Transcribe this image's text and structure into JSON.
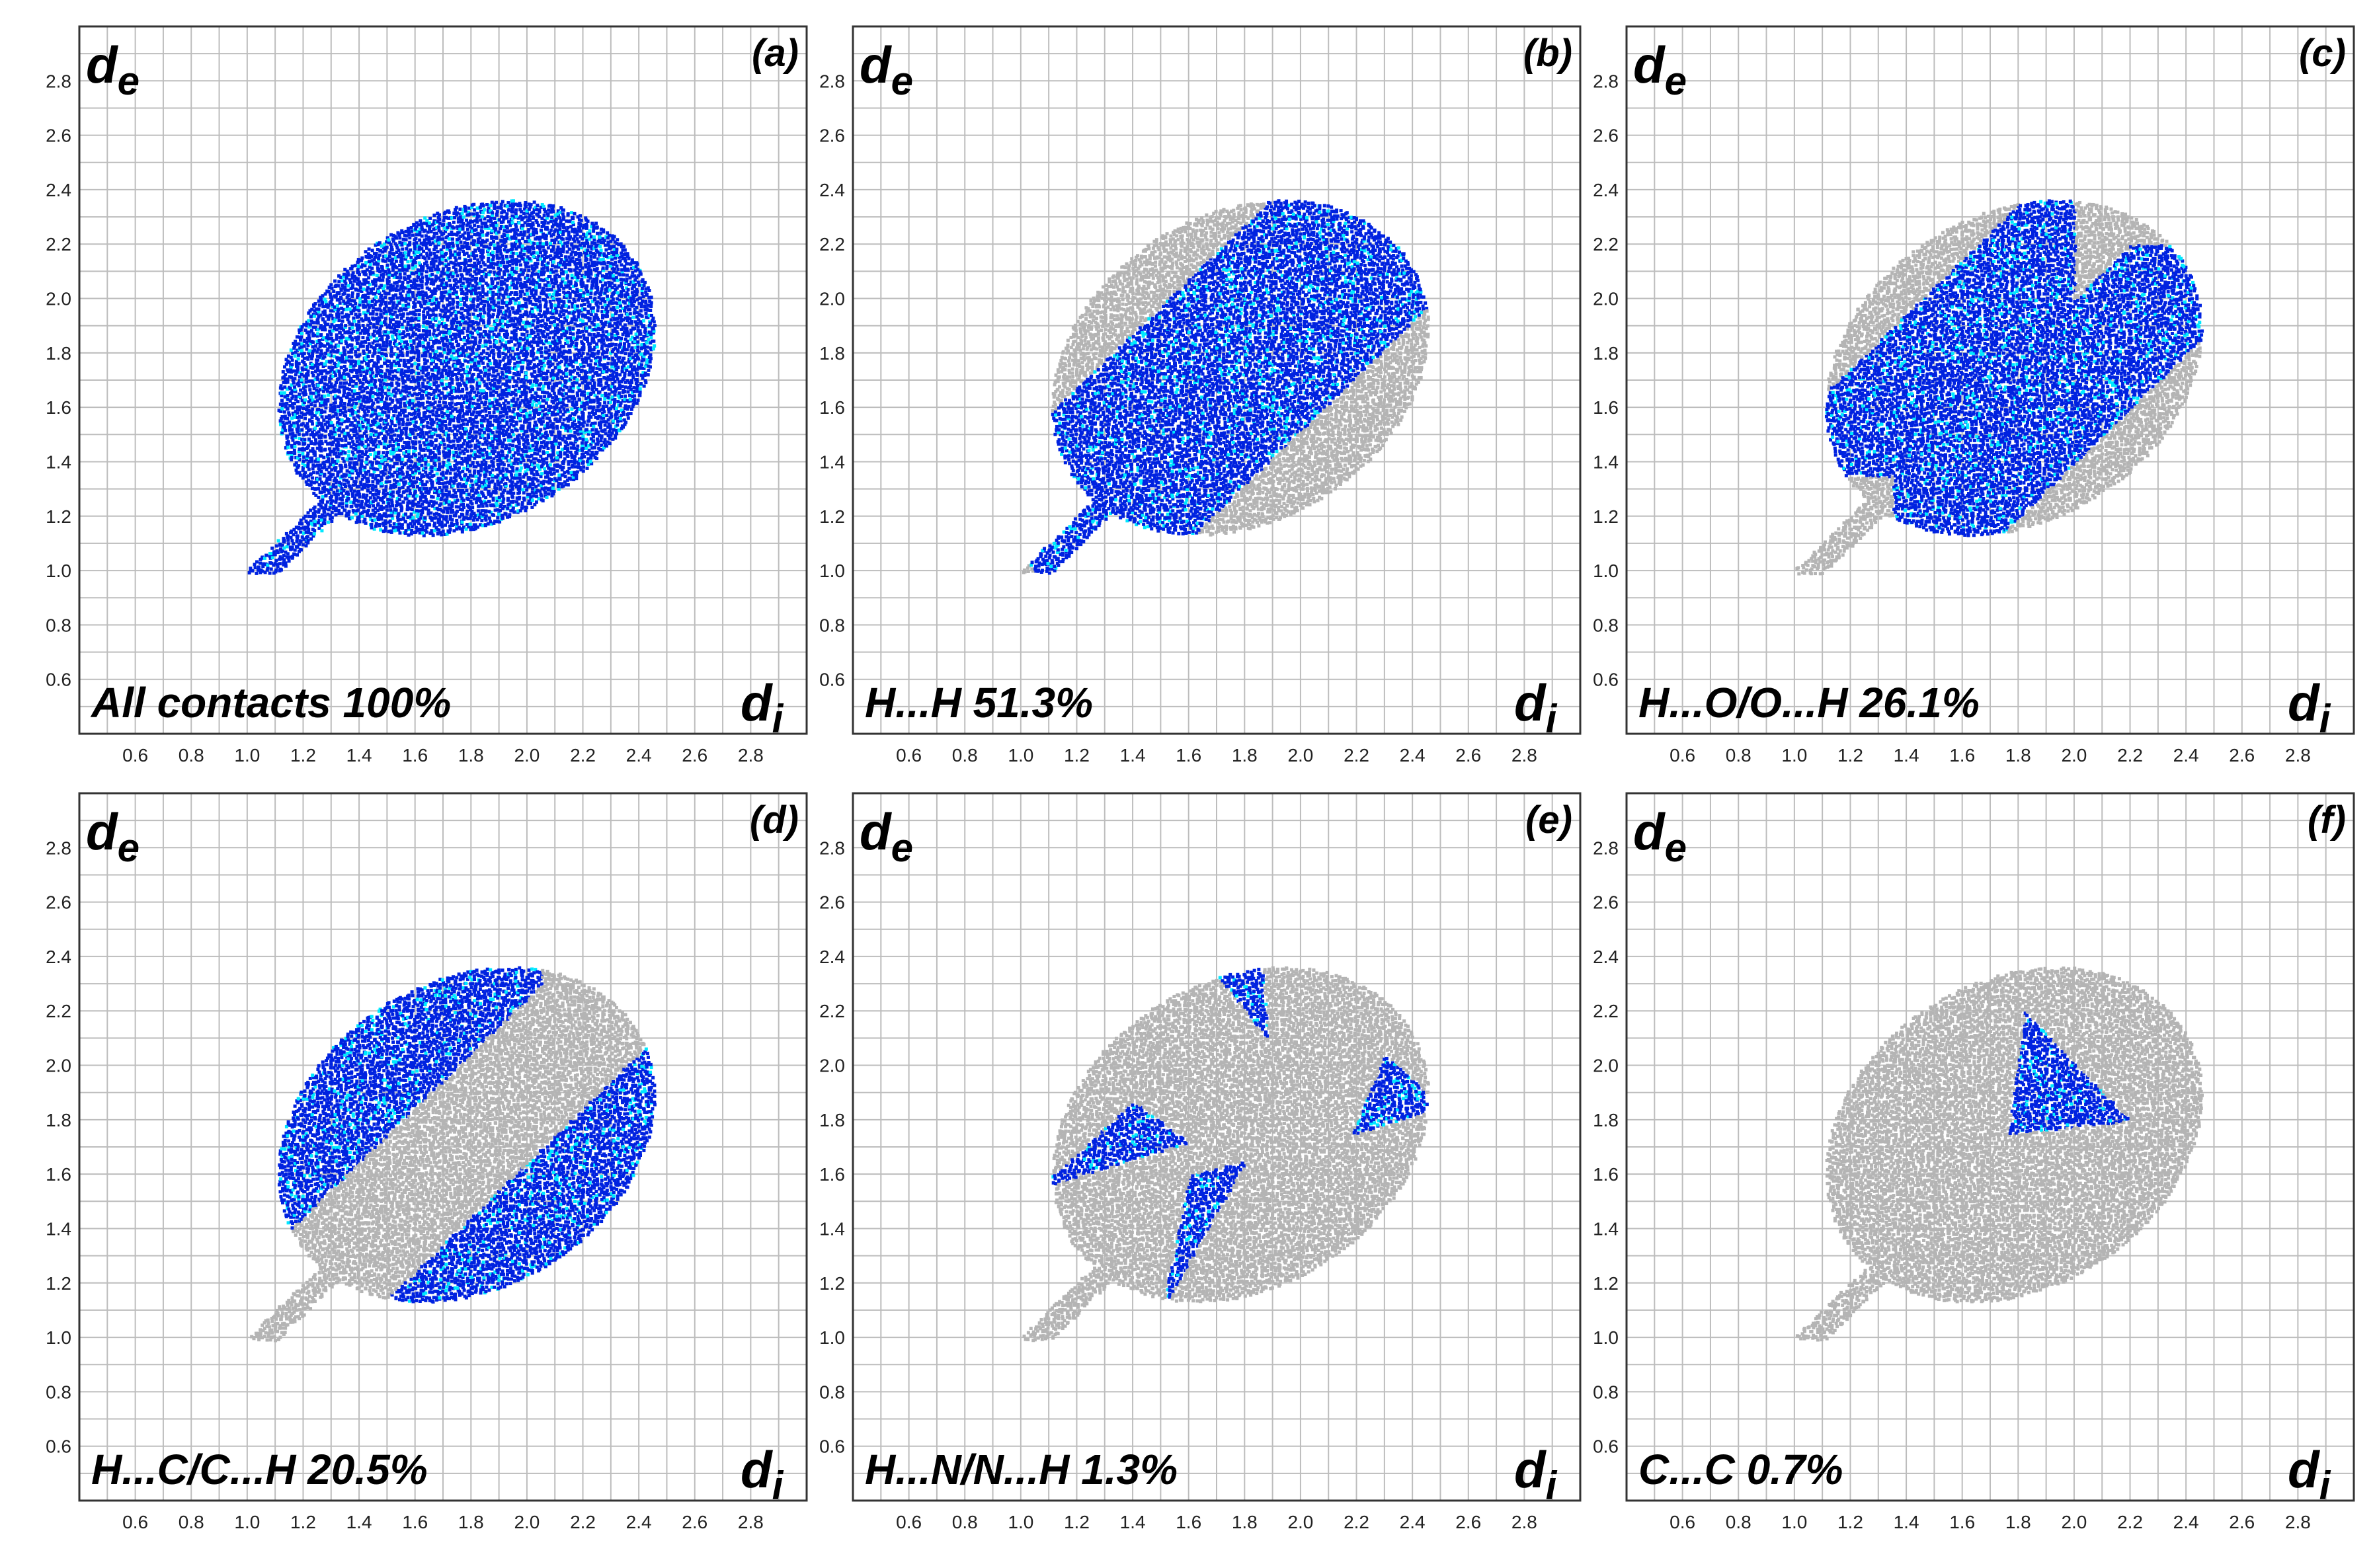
{
  "chart_data": [
    {
      "type": "heatmap",
      "panel_label": "(a)",
      "title": "All contacts 100%",
      "xlabel_main": "d",
      "xlabel_sub": "i",
      "ylabel_main": "d",
      "ylabel_sub": "e",
      "xlim": [
        0.4,
        3.0
      ],
      "ylim": [
        0.4,
        3.0
      ],
      "xticks": [
        "0.6",
        "0.8",
        "1.0",
        "1.2",
        "1.4",
        "1.6",
        "1.8",
        "2.0",
        "2.2",
        "2.4",
        "2.6",
        "2.8"
      ],
      "yticks": [
        "0.6",
        "0.8",
        "1.0",
        "1.2",
        "1.4",
        "1.6",
        "1.8",
        "2.0",
        "2.2",
        "2.4",
        "2.6",
        "2.8"
      ],
      "grid": true,
      "contact_fraction_percent": 100,
      "highlight": "all",
      "colors": [
        "#0022e0",
        "#00e8ff"
      ]
    },
    {
      "type": "heatmap",
      "panel_label": "(b)",
      "title": "H...H 51.3%",
      "xlabel_main": "d",
      "xlabel_sub": "i",
      "ylabel_main": "d",
      "ylabel_sub": "e",
      "xlim": [
        0.4,
        3.0
      ],
      "ylim": [
        0.4,
        3.0
      ],
      "xticks": [
        "0.6",
        "0.8",
        "1.0",
        "1.2",
        "1.4",
        "1.6",
        "1.8",
        "2.0",
        "2.2",
        "2.4",
        "2.6",
        "2.8"
      ],
      "yticks": [
        "0.6",
        "0.8",
        "1.0",
        "1.2",
        "1.4",
        "1.6",
        "1.8",
        "2.0",
        "2.2",
        "2.4",
        "2.6",
        "2.8"
      ],
      "grid": true,
      "contact_fraction_percent": 51.3,
      "highlight": "HH",
      "colors": [
        "#0022e0",
        "#00e8ff"
      ]
    },
    {
      "type": "heatmap",
      "panel_label": "(c)",
      "title": "H...O/O...H 26.1%",
      "xlabel_main": "d",
      "xlabel_sub": "i",
      "ylabel_main": "d",
      "ylabel_sub": "e",
      "xlim": [
        0.4,
        3.0
      ],
      "ylim": [
        0.4,
        3.0
      ],
      "xticks": [
        "0.6",
        "0.8",
        "1.0",
        "1.2",
        "1.4",
        "1.6",
        "1.8",
        "2.0",
        "2.2",
        "2.4",
        "2.6",
        "2.8"
      ],
      "yticks": [
        "0.6",
        "0.8",
        "1.0",
        "1.2",
        "1.4",
        "1.6",
        "1.8",
        "2.0",
        "2.2",
        "2.4",
        "2.6",
        "2.8"
      ],
      "grid": true,
      "contact_fraction_percent": 26.1,
      "highlight": "HO",
      "colors": [
        "#0022e0",
        "#00e8ff"
      ]
    },
    {
      "type": "heatmap",
      "panel_label": "(d)",
      "title": "H...C/C...H 20.5%",
      "xlabel_main": "d",
      "xlabel_sub": "i",
      "ylabel_main": "d",
      "ylabel_sub": "e",
      "xlim": [
        0.4,
        3.0
      ],
      "ylim": [
        0.4,
        3.0
      ],
      "xticks": [
        "0.6",
        "0.8",
        "1.0",
        "1.2",
        "1.4",
        "1.6",
        "1.8",
        "2.0",
        "2.2",
        "2.4",
        "2.6",
        "2.8"
      ],
      "yticks": [
        "0.6",
        "0.8",
        "1.0",
        "1.2",
        "1.4",
        "1.6",
        "1.8",
        "2.0",
        "2.2",
        "2.4",
        "2.6",
        "2.8"
      ],
      "grid": true,
      "contact_fraction_percent": 20.5,
      "highlight": "HC",
      "colors": [
        "#0022e0",
        "#00e8ff"
      ]
    },
    {
      "type": "heatmap",
      "panel_label": "(e)",
      "title": "H...N/N...H 1.3%",
      "xlabel_main": "d",
      "xlabel_sub": "i",
      "ylabel_main": "d",
      "ylabel_sub": "e",
      "xlim": [
        0.4,
        3.0
      ],
      "ylim": [
        0.4,
        3.0
      ],
      "xticks": [
        "0.6",
        "0.8",
        "1.0",
        "1.2",
        "1.4",
        "1.6",
        "1.8",
        "2.0",
        "2.2",
        "2.4",
        "2.6",
        "2.8"
      ],
      "yticks": [
        "0.6",
        "0.8",
        "1.0",
        "1.2",
        "1.4",
        "1.6",
        "1.8",
        "2.0",
        "2.2",
        "2.4",
        "2.6",
        "2.8"
      ],
      "grid": true,
      "contact_fraction_percent": 1.3,
      "highlight": "HN",
      "colors": [
        "#0022e0",
        "#00e8ff"
      ]
    },
    {
      "type": "heatmap",
      "panel_label": "(f)",
      "title": "C...C 0.7%",
      "xlabel_main": "d",
      "xlabel_sub": "i",
      "ylabel_main": "d",
      "ylabel_sub": "e",
      "xlim": [
        0.4,
        3.0
      ],
      "ylim": [
        0.4,
        3.0
      ],
      "xticks": [
        "0.6",
        "0.8",
        "1.0",
        "1.2",
        "1.4",
        "1.6",
        "1.8",
        "2.0",
        "2.2",
        "2.4",
        "2.6",
        "2.8"
      ],
      "yticks": [
        "0.6",
        "0.8",
        "1.0",
        "1.2",
        "1.4",
        "1.6",
        "1.8",
        "2.0",
        "2.2",
        "2.4",
        "2.6",
        "2.8"
      ],
      "grid": true,
      "contact_fraction_percent": 0.7,
      "highlight": "CC",
      "colors": [
        "#0022e0",
        "#00e8ff"
      ]
    }
  ],
  "colors": {
    "grey_region": "#b4b4b4",
    "grid": "#bdbdbd",
    "frame": "#333333"
  }
}
